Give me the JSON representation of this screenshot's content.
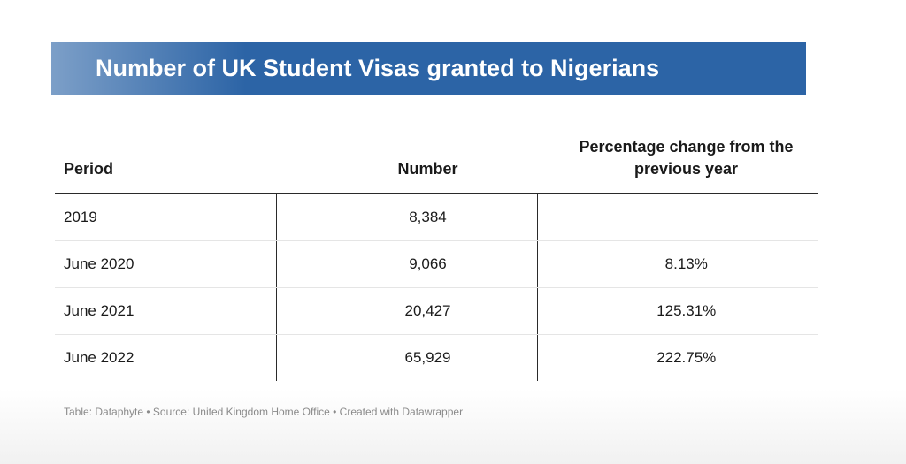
{
  "title": "Number of UK Student Visas granted to Nigerians",
  "table": {
    "headers": [
      "Period",
      "Number",
      "Percentage change from the previous year"
    ],
    "rows": [
      [
        "2019",
        "8,384",
        ""
      ],
      [
        "June 2020",
        "9,066",
        "8.13%"
      ],
      [
        "June 2021",
        "20,427",
        "125.31%"
      ],
      [
        "June 2022",
        "65,929",
        "222.75%"
      ]
    ]
  },
  "footer": "Table: Dataphyte • Source: United Kingdom Home Office • Created with Datawrapper",
  "colors": {
    "banner": "#2c64a6",
    "banner_text": "#ffffff",
    "footer_text": "#8a8a8a"
  },
  "chart_data": {
    "type": "table",
    "title": "Number of UK Student Visas granted to Nigerians",
    "columns": [
      "Period",
      "Number",
      "Percentage change from the previous year"
    ],
    "rows": [
      {
        "period": "2019",
        "number": 8384,
        "pct_change": null
      },
      {
        "period": "June 2020",
        "number": 9066,
        "pct_change": 8.13
      },
      {
        "period": "June 2021",
        "number": 20427,
        "pct_change": 125.31
      },
      {
        "period": "June 2022",
        "number": 65929,
        "pct_change": 222.75
      }
    ],
    "source": "United Kingdom Home Office"
  }
}
